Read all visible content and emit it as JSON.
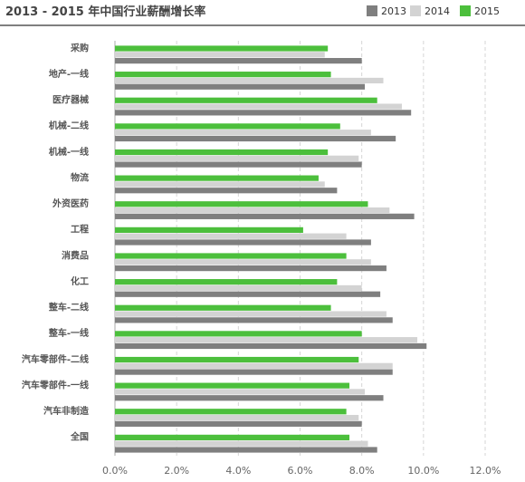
{
  "chart_data": {
    "type": "bar",
    "orientation": "horizontal",
    "title": "2013 - 2015 年中国行业薪酬增长率",
    "categories": [
      "采购",
      "地产-一线",
      "医疗器械",
      "机械-二线",
      "机械-一线",
      "物流",
      "外资医药",
      "工程",
      "消费品",
      "化工",
      "整车-二线",
      "整车-一线",
      "汽车零部件-二线",
      "汽车零部件-一线",
      "汽车非制造",
      "全国"
    ],
    "series": [
      {
        "name": "2013",
        "color": "#7f7f7f",
        "values": [
          8.0,
          8.1,
          9.6,
          9.1,
          8.0,
          7.2,
          9.7,
          8.3,
          8.8,
          8.6,
          9.0,
          10.1,
          9.0,
          8.7,
          8.0,
          8.5
        ]
      },
      {
        "name": "2014",
        "color": "#d3d3d3",
        "values": [
          6.8,
          8.7,
          9.3,
          8.3,
          7.9,
          6.8,
          8.9,
          7.5,
          8.3,
          8.0,
          8.8,
          9.8,
          9.0,
          8.1,
          7.9,
          8.2
        ]
      },
      {
        "name": "2015",
        "color": "#4cbf3c",
        "values": [
          6.9,
          7.0,
          8.5,
          7.3,
          6.9,
          6.6,
          8.2,
          6.1,
          7.5,
          7.2,
          7.0,
          8.0,
          7.9,
          7.6,
          7.5,
          7.6
        ]
      }
    ],
    "xlim": [
      0,
      12
    ],
    "x_ticks": [
      "0.0%",
      "2.0%",
      "4.0%",
      "6.0%",
      "8.0%",
      "10.0%",
      "12.0%"
    ],
    "grid": true,
    "legend_position": "top-right"
  }
}
